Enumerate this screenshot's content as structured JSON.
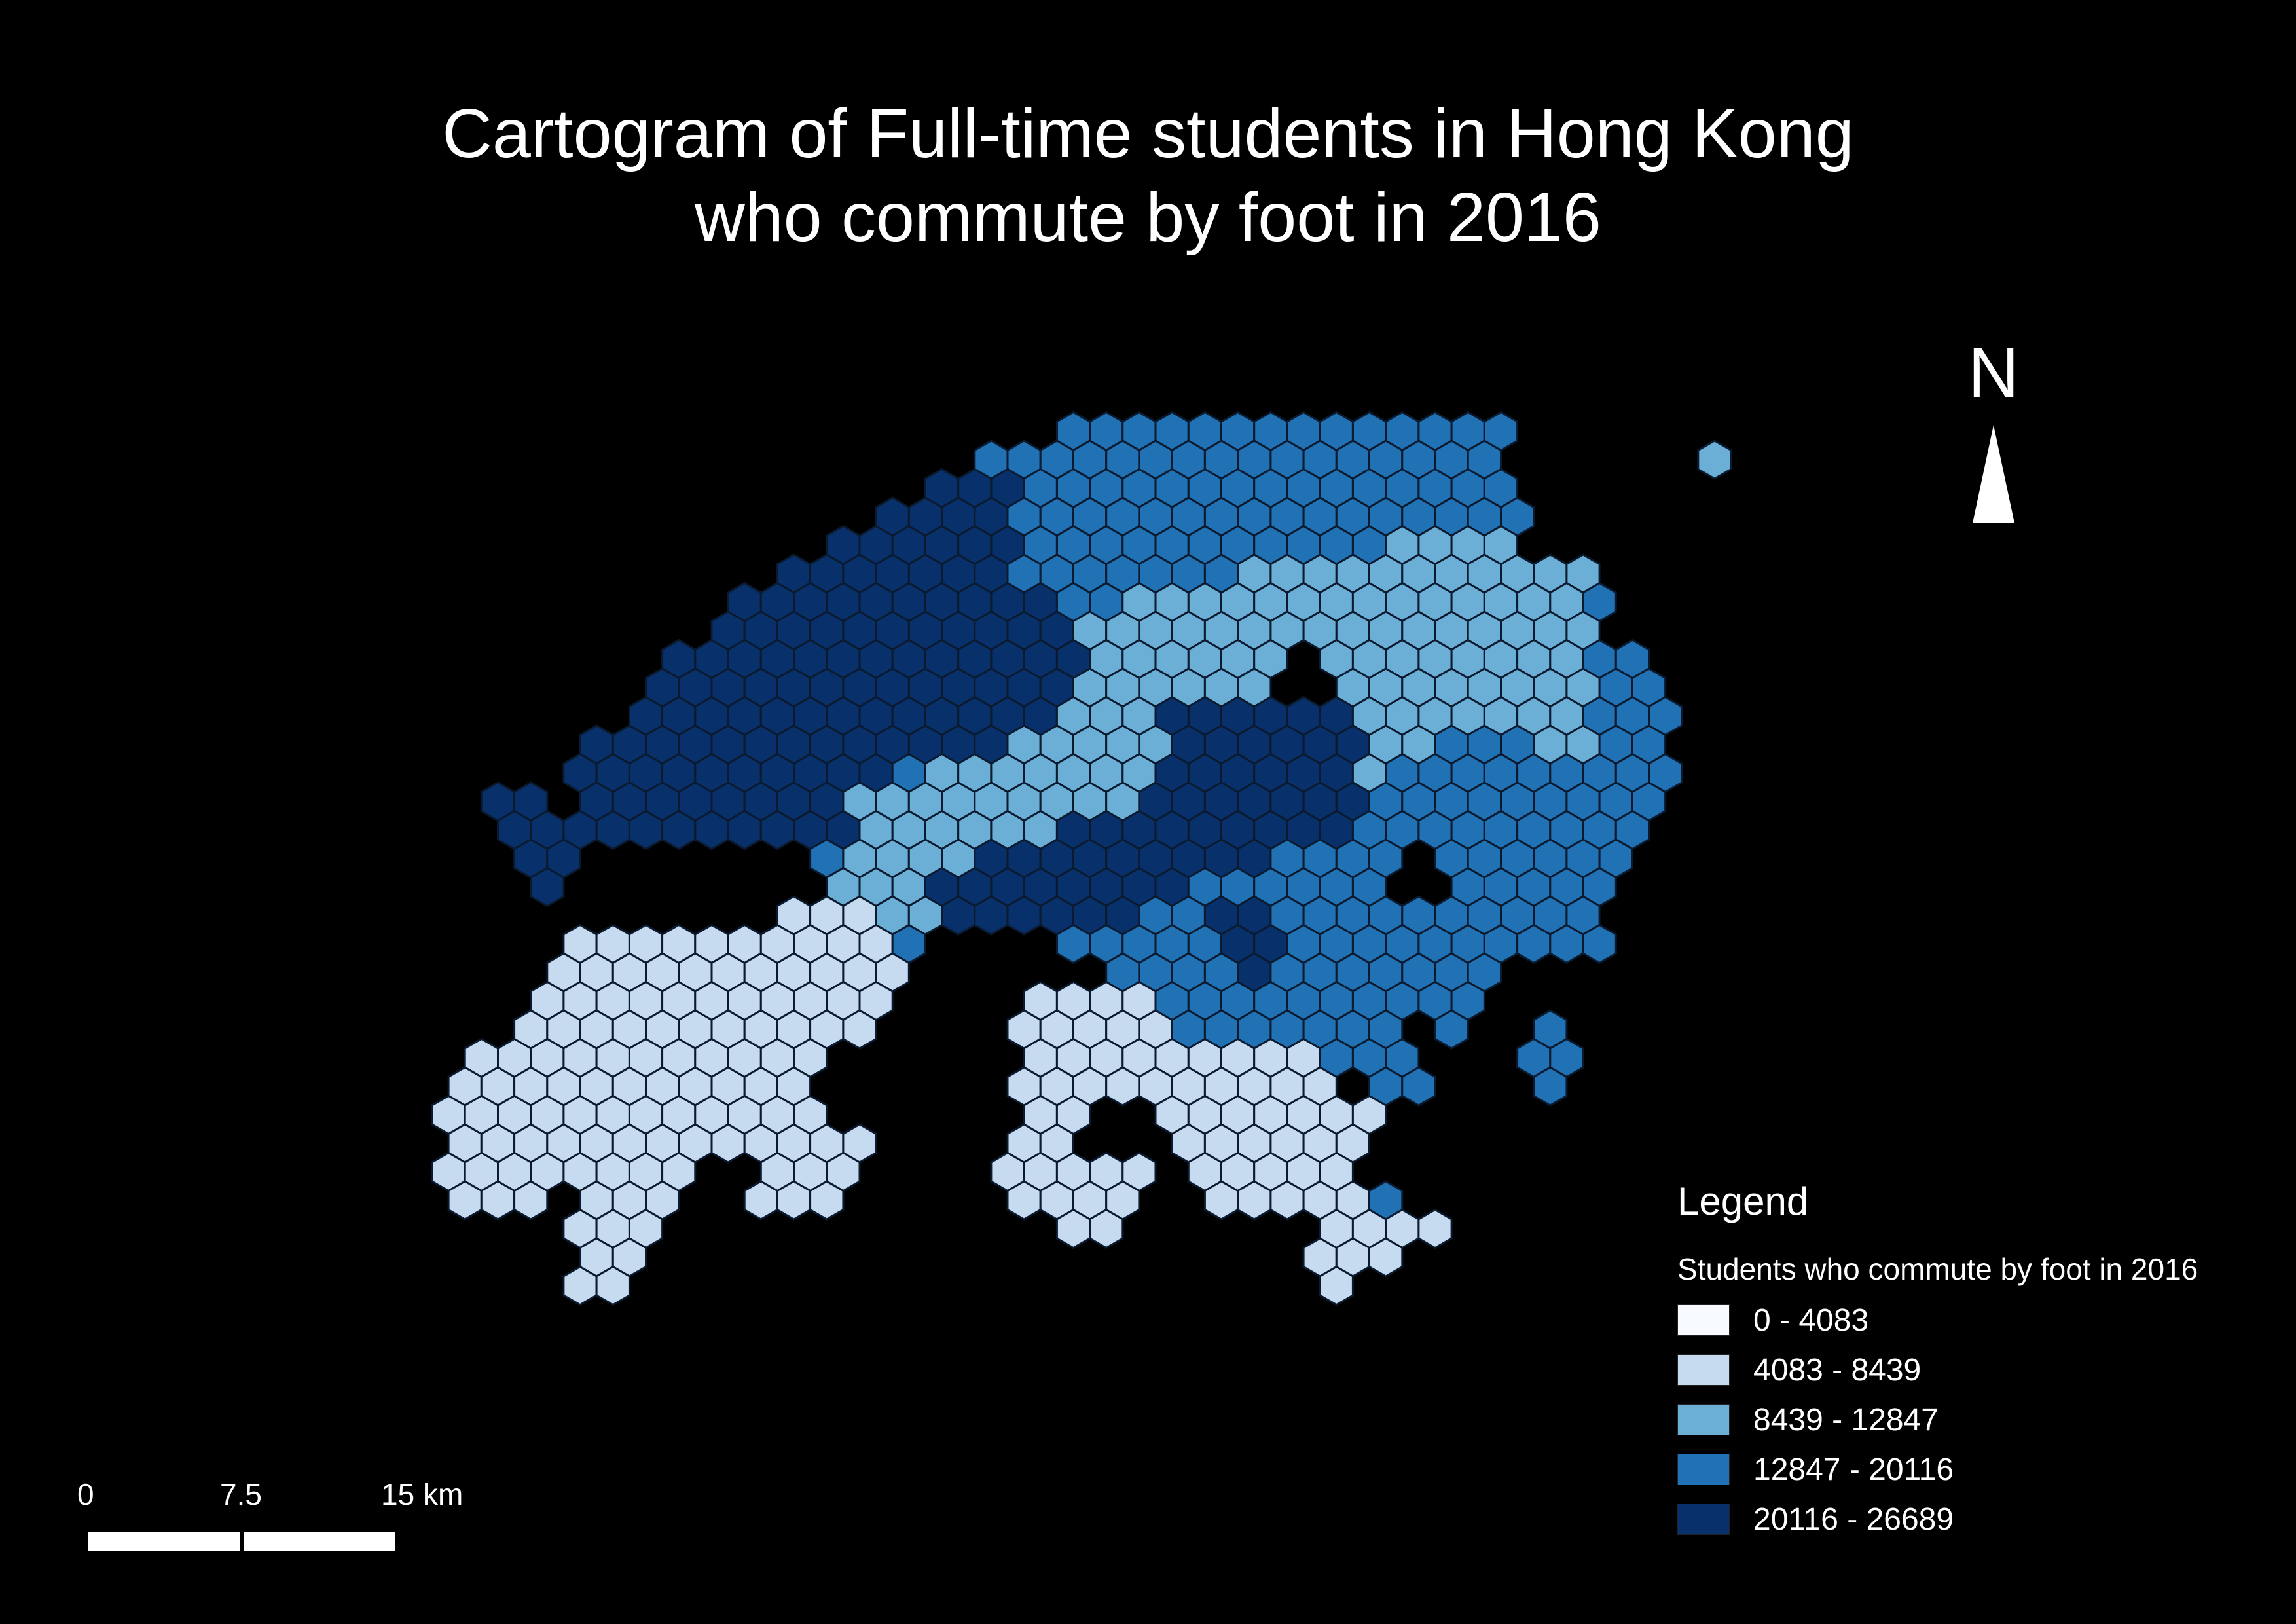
{
  "map": {
    "title_line1": "Cartogram of Full-time students in Hong Kong",
    "title_line2": "who commute by foot in 2016",
    "north_label": "N",
    "legend": {
      "title": "Legend",
      "subtitle": "Students who commute by foot in 2016",
      "classes": [
        {
          "label": "0 - 4083",
          "color": "#f7fbff"
        },
        {
          "label": "4083 - 8439",
          "color": "#c6dbef"
        },
        {
          "label": "8439 - 12847",
          "color": "#6baed6"
        },
        {
          "label": "12847 - 20116",
          "color": "#2171b5"
        },
        {
          "label": "20116 - 26689",
          "color": "#08306b"
        }
      ]
    },
    "scalebar": {
      "ticks": [
        "0",
        "7.5",
        "15 km"
      ]
    },
    "hex_border_color": "#0b1a2e"
  }
}
